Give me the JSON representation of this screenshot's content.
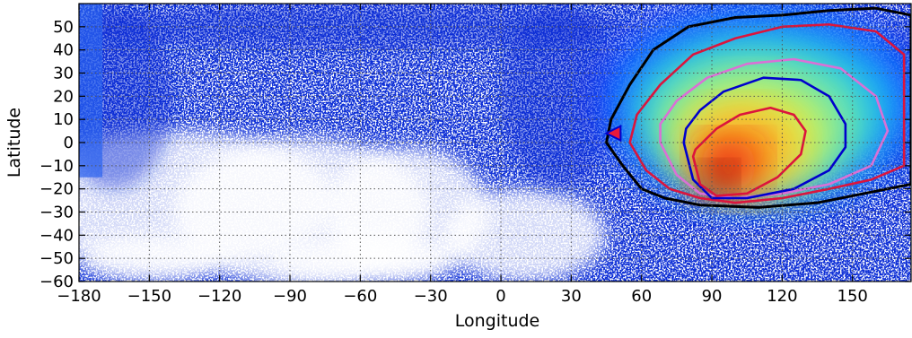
{
  "chart_data": {
    "type": "heatmap",
    "title": "",
    "xlabel": "Longitude",
    "ylabel": "Latitude",
    "xlim": [
      -180,
      175
    ],
    "ylim": [
      -60,
      60
    ],
    "x_ticks": [
      -180,
      -150,
      -120,
      -90,
      -60,
      -30,
      0,
      30,
      60,
      90,
      120,
      150
    ],
    "y_ticks": [
      -60,
      -50,
      -40,
      -30,
      -20,
      -10,
      0,
      10,
      20,
      30,
      40,
      50
    ],
    "x_tick_labels": [
      "−180",
      "−150",
      "−120",
      "−90",
      "−60",
      "−30",
      "0",
      "30",
      "60",
      "90",
      "120",
      "150"
    ],
    "y_tick_labels": [
      "−60",
      "−50",
      "−40",
      "−30",
      "−20",
      "−10",
      "0",
      "10",
      "20",
      "30",
      "40",
      "50"
    ],
    "grid": true,
    "grid_style": "dotted",
    "colormap": "jet",
    "density_peak": {
      "lon": 93,
      "lat": -16
    },
    "contours": [
      {
        "level": "outermost",
        "color": "#000000",
        "lon": [
          45,
          52,
          60,
          70,
          85,
          110,
          135,
          155,
          175,
          175,
          160,
          140,
          120,
          100,
          80,
          65,
          55,
          47
        ],
        "lat": [
          0,
          -10,
          -20,
          -24,
          -27,
          -28,
          -26,
          -22,
          -18,
          55,
          58,
          57,
          55,
          54,
          50,
          40,
          25,
          10
        ]
      },
      {
        "level": "2",
        "color": "#dc143c",
        "lon": [
          55,
          62,
          72,
          85,
          100,
          120,
          140,
          158,
          172,
          172,
          160,
          140,
          120,
          100,
          82,
          68,
          58
        ],
        "lat": [
          0,
          -12,
          -20,
          -24,
          -26,
          -24,
          -20,
          -16,
          -10,
          38,
          48,
          51,
          50,
          45,
          38,
          25,
          12
        ]
      },
      {
        "level": "3",
        "color": "#da70d6",
        "lon": [
          68,
          75,
          85,
          100,
          120,
          140,
          158,
          165,
          160,
          145,
          125,
          105,
          88,
          75,
          68
        ],
        "lat": [
          0,
          -14,
          -22,
          -24,
          -22,
          -18,
          -10,
          5,
          20,
          32,
          36,
          34,
          28,
          18,
          8
        ]
      },
      {
        "level": "4",
        "color": "#0000cd",
        "lon": [
          78,
          82,
          90,
          105,
          125,
          140,
          147,
          147,
          140,
          128,
          112,
          95,
          85,
          79
        ],
        "lat": [
          0,
          -16,
          -24,
          -24,
          -20,
          -12,
          -2,
          8,
          20,
          27,
          28,
          22,
          14,
          6
        ]
      },
      {
        "level": "5",
        "color": "#dc143c",
        "lon": [
          82,
          85,
          92,
          105,
          118,
          128,
          130,
          125,
          115,
          102,
          92,
          86,
          83
        ],
        "lat": [
          -6,
          -18,
          -23,
          -22,
          -15,
          -5,
          5,
          12,
          15,
          12,
          6,
          0,
          -3
        ]
      }
    ],
    "markers": [
      {
        "shape": "triangle-left",
        "color": "#e8193c",
        "edge": "#0000cd",
        "lon": 48,
        "lat": 4
      }
    ]
  }
}
